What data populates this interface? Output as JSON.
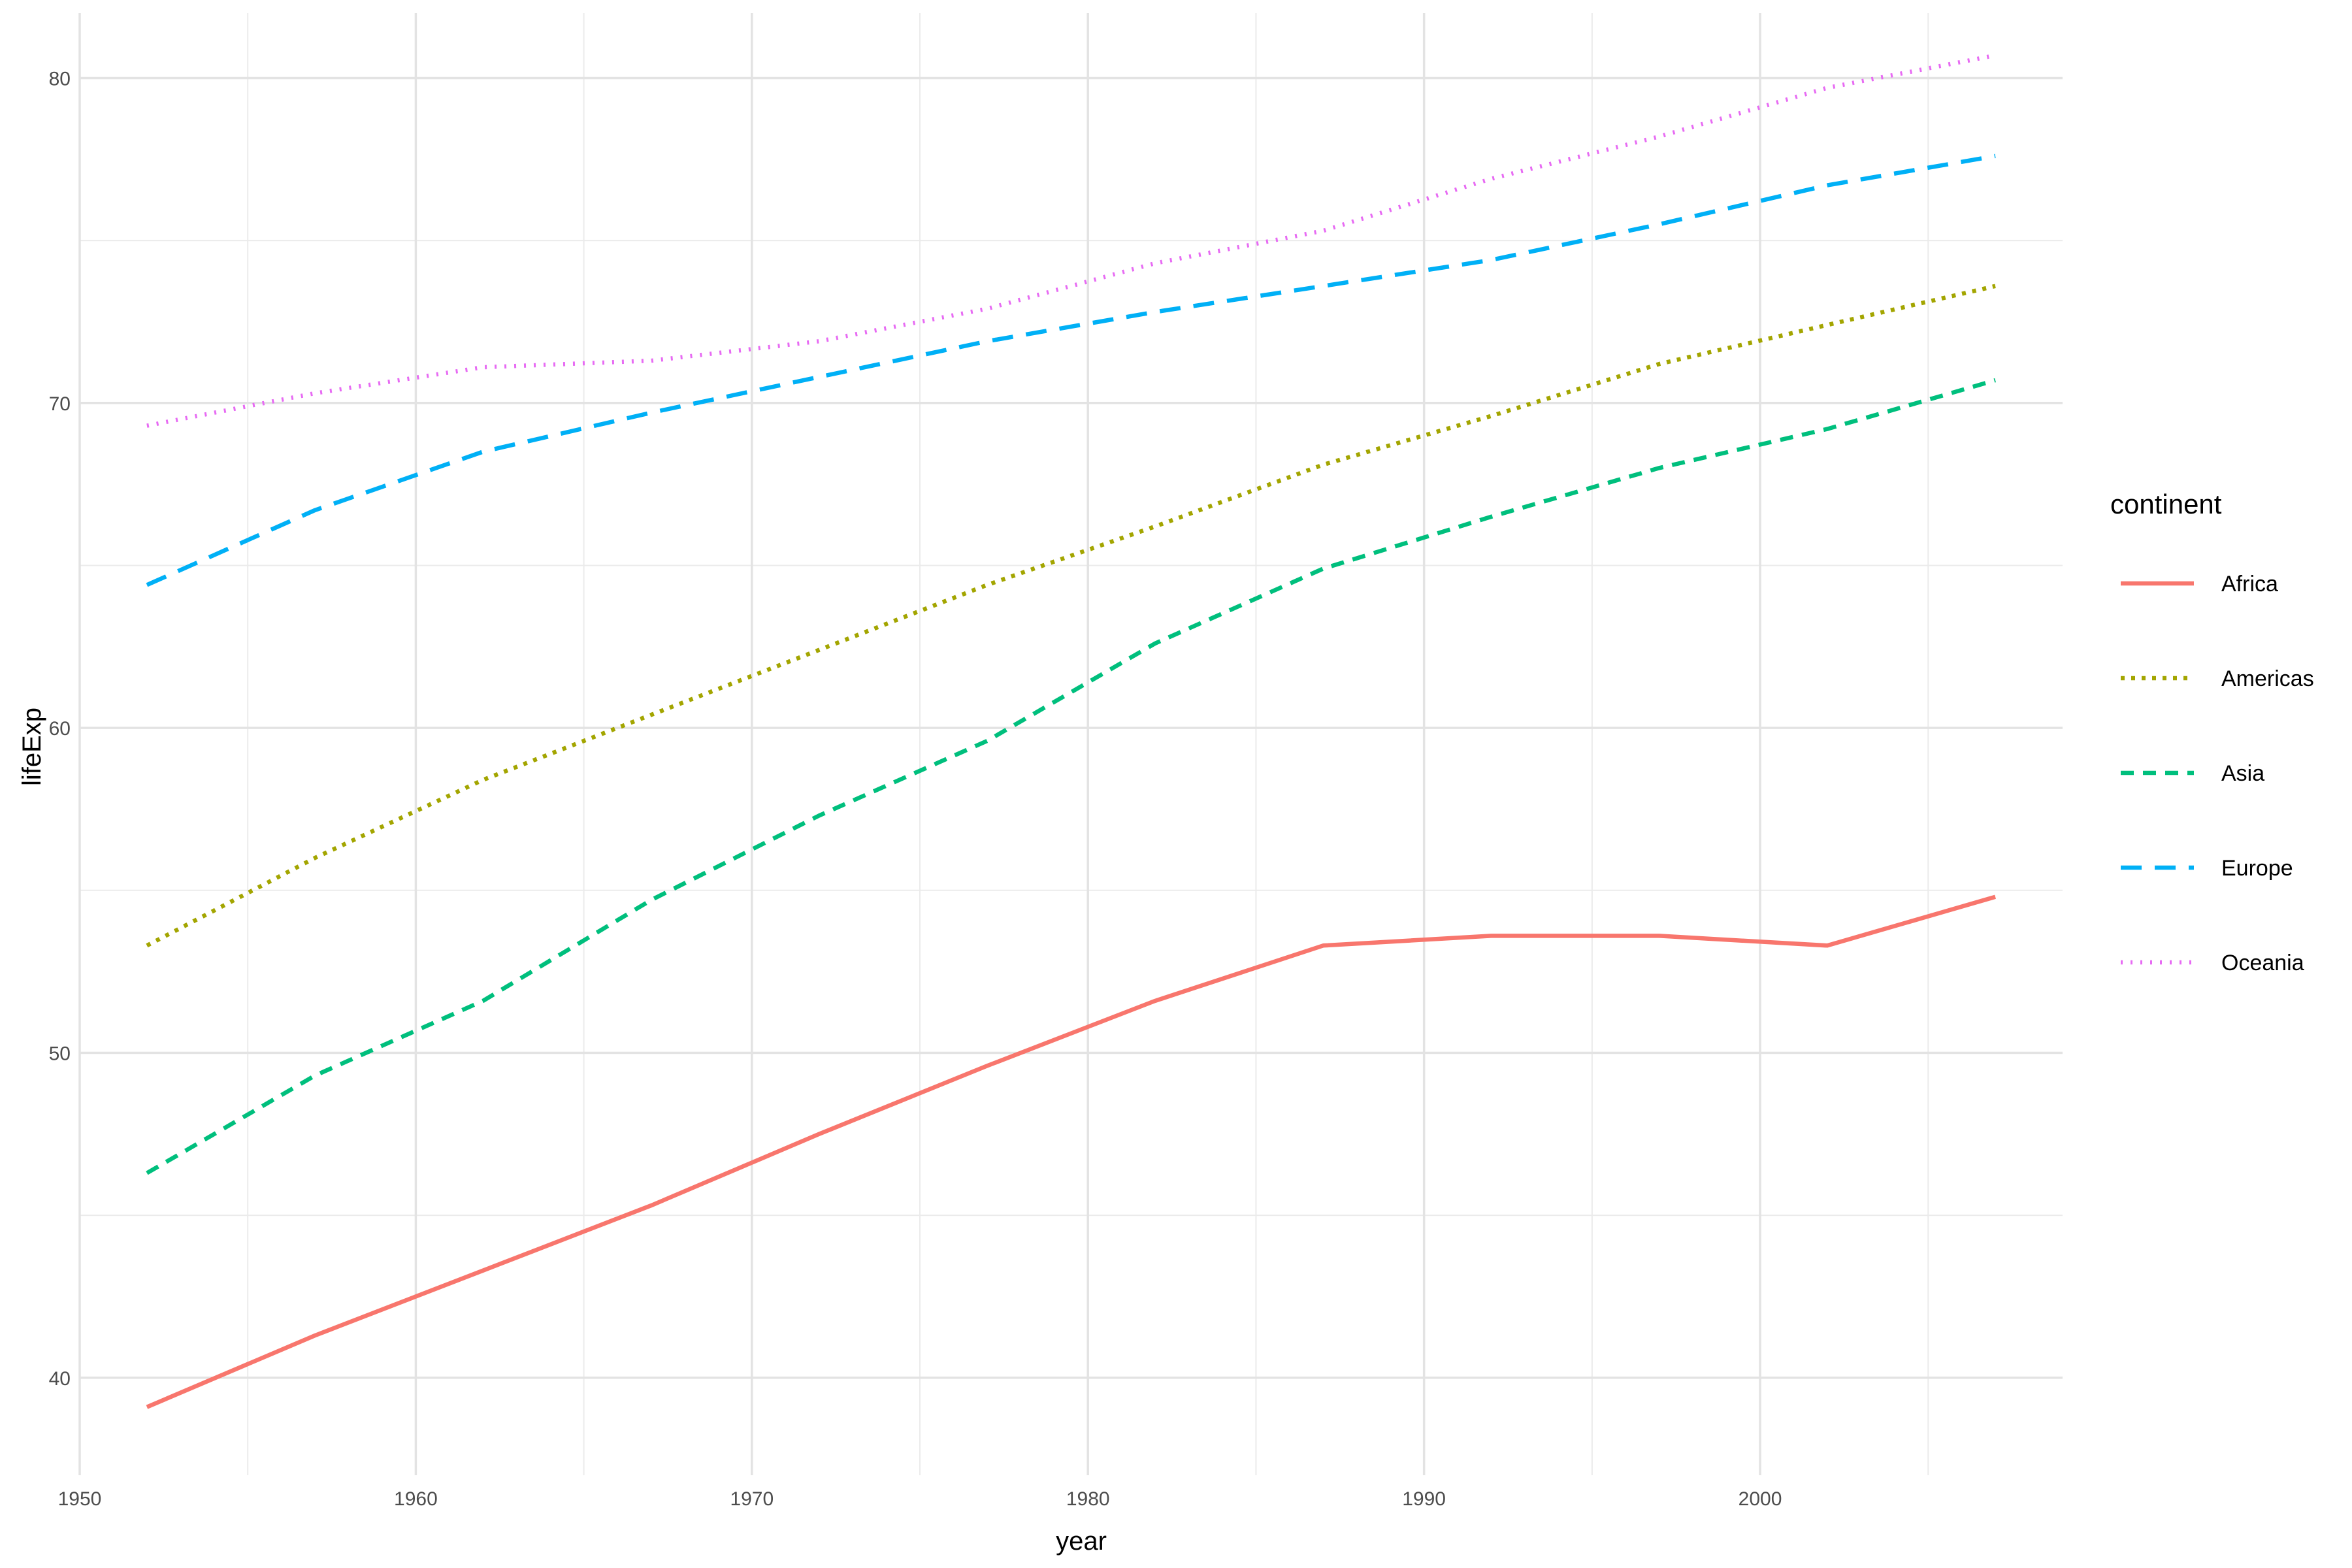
{
  "chart_data": {
    "type": "line",
    "xlabel": "year",
    "ylabel": "lifeExp",
    "xlim": [
      1950,
      2009
    ],
    "ylim": [
      37,
      82
    ],
    "x_ticks": [
      1950,
      1960,
      1970,
      1980,
      1990,
      2000
    ],
    "y_ticks": [
      40,
      50,
      60,
      70,
      80
    ],
    "grid": true,
    "legend": {
      "title": "continent",
      "position": "right"
    },
    "x": [
      1952,
      1957,
      1962,
      1967,
      1972,
      1977,
      1982,
      1987,
      1992,
      1997,
      2002,
      2007
    ],
    "series": [
      {
        "name": "Africa",
        "color": "#F8766D",
        "linetype": "solid",
        "values": [
          39.1,
          41.3,
          43.3,
          45.3,
          47.5,
          49.6,
          51.6,
          53.3,
          53.6,
          53.6,
          53.3,
          54.8
        ]
      },
      {
        "name": "Americas",
        "color": "#A3A500",
        "linetype": "dotted",
        "values": [
          53.3,
          56.0,
          58.4,
          60.4,
          62.4,
          64.4,
          66.2,
          68.1,
          69.6,
          71.2,
          72.4,
          73.6
        ]
      },
      {
        "name": "Asia",
        "color": "#00BF7D",
        "linetype": "dashed",
        "values": [
          46.3,
          49.3,
          51.6,
          54.7,
          57.3,
          59.6,
          62.6,
          64.9,
          66.5,
          68.0,
          69.2,
          70.7
        ]
      },
      {
        "name": "Europe",
        "color": "#00B0F6",
        "linetype": "longdash",
        "values": [
          64.4,
          66.7,
          68.5,
          69.7,
          70.8,
          71.9,
          72.8,
          73.6,
          74.4,
          75.5,
          76.7,
          77.6
        ]
      },
      {
        "name": "Oceania",
        "color": "#E76BF3",
        "linetype": "dotted-fine",
        "values": [
          69.3,
          70.3,
          71.1,
          71.3,
          71.9,
          72.9,
          74.3,
          75.3,
          76.9,
          78.2,
          79.7,
          80.7
        ]
      }
    ]
  }
}
